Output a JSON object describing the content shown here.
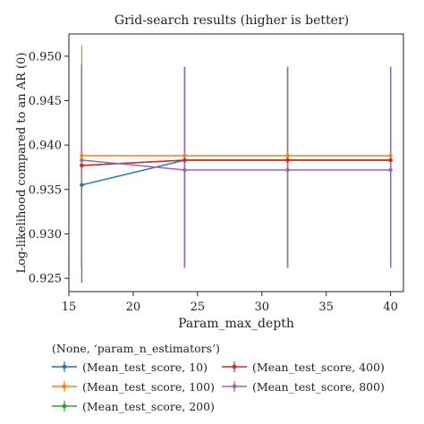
{
  "chart_data": {
    "type": "line",
    "title": "Grid-search results (higher is better)",
    "xlabel": "Param_max_depth",
    "ylabel": "Log-likelihood compared to an AR (0)",
    "xlim": [
      15,
      41
    ],
    "ylim": [
      0.9235,
      0.9525
    ],
    "xticks": [
      15,
      20,
      25,
      30,
      35,
      40
    ],
    "yticks": [
      0.925,
      0.93,
      0.935,
      0.94,
      0.945,
      0.95
    ],
    "x": [
      16,
      24,
      32,
      40
    ],
    "grid": false,
    "legend_title": "(None, ‘param_n_estimators’)",
    "legend_position": "below",
    "series": [
      {
        "name": "(Mean_test_score, 10)",
        "color": "#1f77b4",
        "values": [
          0.9355,
          0.9383,
          0.9383,
          0.9383
        ],
        "err_low": [
          0.9245,
          0.9262,
          0.9262,
          0.9262
        ],
        "err_high": [
          0.9492,
          0.9488,
          0.9488,
          0.9488
        ]
      },
      {
        "name": "(Mean_test_score, 100)",
        "color": "#ff7f0e",
        "values": [
          0.9388,
          0.9388,
          0.9388,
          0.9388
        ],
        "err_low": [
          0.9262,
          0.9262,
          0.9262,
          0.9262
        ],
        "err_high": [
          0.9512,
          0.9488,
          0.9488,
          0.9488
        ]
      },
      {
        "name": "(Mean_test_score, 200)",
        "color": "#2ca02c",
        "values": [
          0.9377,
          0.9383,
          0.9383,
          0.9383
        ],
        "err_low": [
          0.9262,
          0.9262,
          0.9262,
          0.9262
        ],
        "err_high": [
          0.9488,
          0.9488,
          0.9488,
          0.9488
        ]
      },
      {
        "name": "(Mean_test_score, 400)",
        "color": "#d62728",
        "values": [
          0.9377,
          0.9383,
          0.9383,
          0.9383
        ],
        "err_low": [
          0.9262,
          0.9262,
          0.9262,
          0.9262
        ],
        "err_high": [
          0.9488,
          0.9488,
          0.9488,
          0.9488
        ]
      },
      {
        "name": "(Mean_test_score, 800)",
        "color": "#9467bd",
        "values": [
          0.9383,
          0.9372,
          0.9372,
          0.9372
        ],
        "err_low": [
          0.9262,
          0.9262,
          0.9262,
          0.9262
        ],
        "err_high": [
          0.9492,
          0.9488,
          0.9488,
          0.9488
        ]
      }
    ]
  }
}
